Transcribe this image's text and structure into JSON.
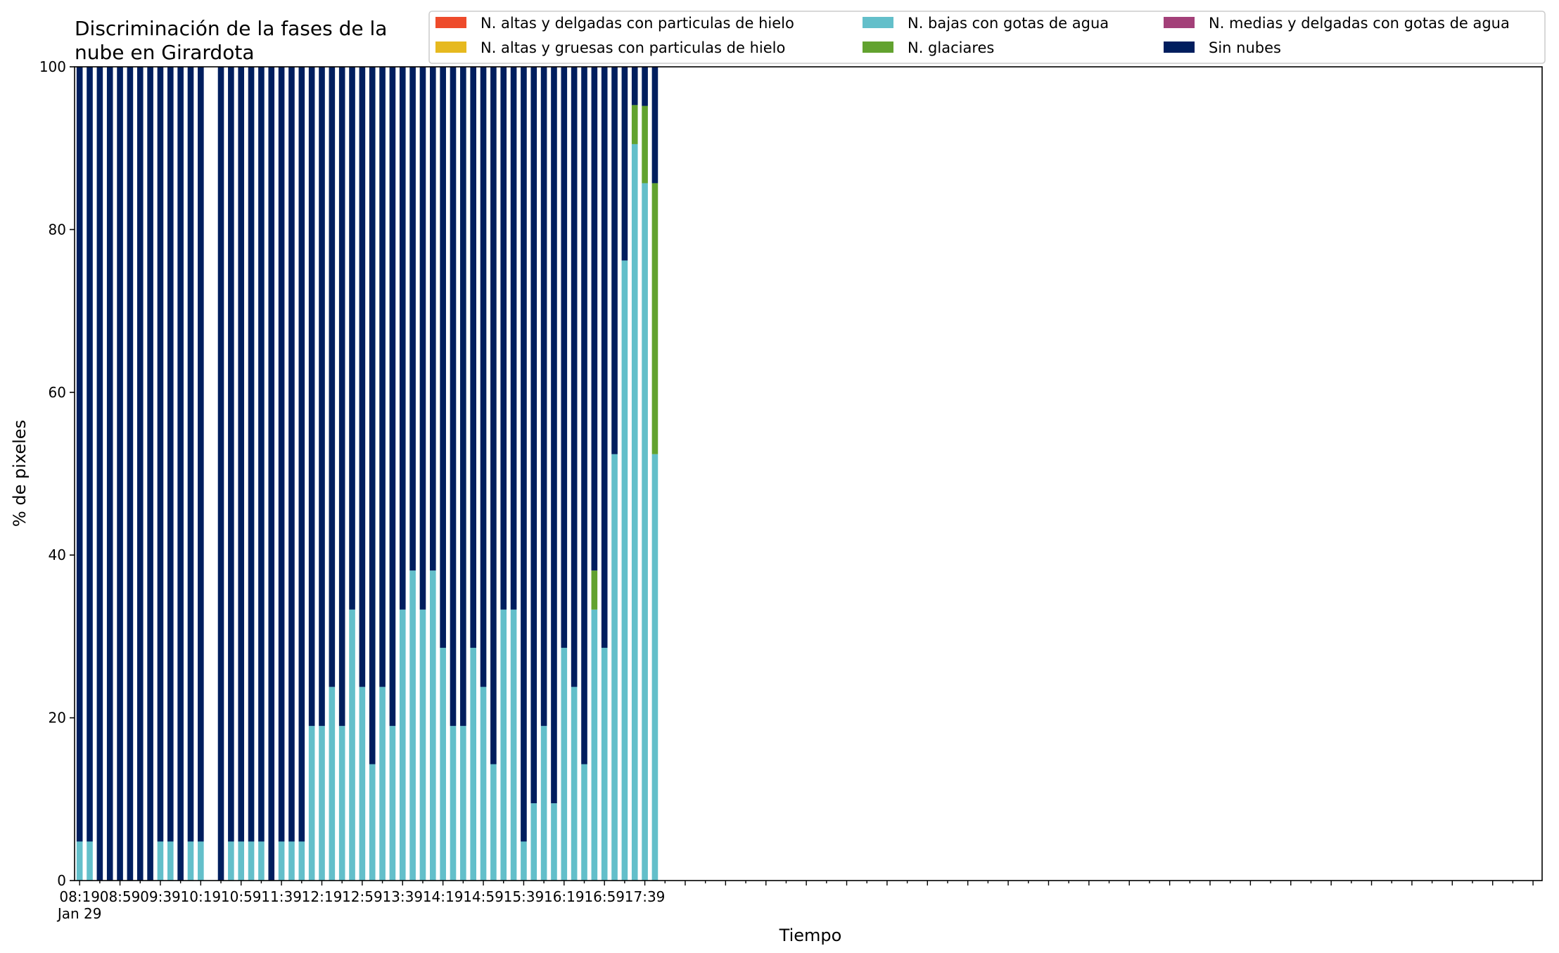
{
  "chart_data": {
    "type": "bar",
    "stacked": true,
    "title_lines": [
      "Discriminación de la fases de la",
      "nube en Girardota"
    ],
    "xlabel": "Tiempo",
    "ylabel": "% de pixeles",
    "ylim": [
      0,
      100
    ],
    "y_ticks": [
      "0",
      "20",
      "40",
      "60",
      "80",
      "100"
    ],
    "x_range_minutes": [
      -5,
      1449
    ],
    "x_tick_labels": [
      {
        "minute": 0,
        "label": "08:19",
        "sublabel": "Jan 29"
      },
      {
        "minute": 40,
        "label": "08:59"
      },
      {
        "minute": 80,
        "label": "09:39"
      },
      {
        "minute": 120,
        "label": "10:19"
      },
      {
        "minute": 160,
        "label": "10:59"
      },
      {
        "minute": 200,
        "label": "11:39"
      },
      {
        "minute": 240,
        "label": "12:19"
      },
      {
        "minute": 280,
        "label": "12:59"
      },
      {
        "minute": 320,
        "label": "13:39"
      },
      {
        "minute": 360,
        "label": "14:19"
      },
      {
        "minute": 400,
        "label": "14:59"
      },
      {
        "minute": 440,
        "label": "15:39"
      },
      {
        "minute": 480,
        "label": "16:19"
      },
      {
        "minute": 520,
        "label": "16:59"
      },
      {
        "minute": 560,
        "label": "17:39"
      }
    ],
    "legend_placement": "top-right",
    "legend_columns": 3,
    "grid": false,
    "series": [
      {
        "name": "N. altas y delgadas con particulas de hielo",
        "color": "#ee4b2b"
      },
      {
        "name": "N. altas y gruesas con particulas de hielo",
        "color": "#e6b91f"
      },
      {
        "name": "N. bajas con gotas de agua",
        "color": "#63bfca"
      },
      {
        "name": "N. glaciares",
        "color": "#62a22f"
      },
      {
        "name": "N. medias y delgadas con gotas de agua",
        "color": "#a34079"
      },
      {
        "name": "Sin nubes",
        "color": "#001e5e"
      }
    ],
    "bars": [
      {
        "time": "08:19",
        "values": [
          0,
          0,
          4.8,
          0,
          0,
          95.2
        ]
      },
      {
        "time": "08:29",
        "values": [
          0,
          0,
          4.8,
          0,
          0,
          95.2
        ]
      },
      {
        "time": "08:39",
        "values": [
          0,
          0,
          0,
          0,
          0,
          100
        ]
      },
      {
        "time": "08:49",
        "values": [
          0,
          0,
          0,
          0,
          0,
          100
        ]
      },
      {
        "time": "08:59",
        "values": [
          0,
          0,
          0,
          0,
          0,
          100
        ]
      },
      {
        "time": "09:09",
        "values": [
          0,
          0,
          0,
          0,
          0,
          100
        ]
      },
      {
        "time": "09:19",
        "values": [
          0,
          0,
          0,
          0,
          0,
          100
        ]
      },
      {
        "time": "09:29",
        "values": [
          0,
          0,
          0,
          0,
          0,
          100
        ]
      },
      {
        "time": "09:39",
        "values": [
          0,
          0,
          4.8,
          0,
          0,
          95.2
        ]
      },
      {
        "time": "09:49",
        "values": [
          0,
          0,
          4.8,
          0,
          0,
          95.2
        ]
      },
      {
        "time": "09:59",
        "values": [
          0,
          0,
          0,
          0,
          0,
          100
        ]
      },
      {
        "time": "10:09",
        "values": [
          0,
          0,
          4.8,
          0,
          0,
          95.2
        ]
      },
      {
        "time": "10:19",
        "values": [
          0,
          0,
          4.8,
          0,
          0,
          95.2
        ]
      },
      {
        "time": "10:39",
        "values": [
          0,
          0,
          0,
          0,
          0,
          100
        ]
      },
      {
        "time": "10:49",
        "values": [
          0,
          0,
          4.8,
          0,
          0,
          95.2
        ]
      },
      {
        "time": "10:59",
        "values": [
          0,
          0,
          4.8,
          0,
          0,
          95.2
        ]
      },
      {
        "time": "11:09",
        "values": [
          0,
          0,
          4.8,
          0,
          0,
          95.2
        ]
      },
      {
        "time": "11:19",
        "values": [
          0,
          0,
          4.8,
          0,
          0,
          95.2
        ]
      },
      {
        "time": "11:29",
        "values": [
          0,
          0,
          0,
          0,
          0,
          100
        ]
      },
      {
        "time": "11:39",
        "values": [
          0,
          0,
          4.8,
          0,
          0,
          95.2
        ]
      },
      {
        "time": "11:49",
        "values": [
          0,
          0,
          4.8,
          0,
          0,
          95.2
        ]
      },
      {
        "time": "11:59",
        "values": [
          0,
          0,
          4.8,
          0,
          0,
          95.2
        ]
      },
      {
        "time": "12:09",
        "values": [
          0,
          0,
          19,
          0,
          0,
          81
        ]
      },
      {
        "time": "12:19",
        "values": [
          0,
          0,
          19,
          0,
          0,
          81
        ]
      },
      {
        "time": "12:29",
        "values": [
          0,
          0,
          23.8,
          0,
          0,
          76.2
        ]
      },
      {
        "time": "12:39",
        "values": [
          0,
          0,
          19,
          0,
          0,
          81
        ]
      },
      {
        "time": "12:49",
        "values": [
          0,
          0,
          33.3,
          0,
          0,
          66.7
        ]
      },
      {
        "time": "12:59",
        "values": [
          0,
          0,
          23.8,
          0,
          0,
          76.2
        ]
      },
      {
        "time": "13:09",
        "values": [
          0,
          0,
          14.3,
          0,
          0,
          85.7
        ]
      },
      {
        "time": "13:19",
        "values": [
          0,
          0,
          23.8,
          0,
          0,
          76.2
        ]
      },
      {
        "time": "13:29",
        "values": [
          0,
          0,
          19,
          0,
          0,
          81
        ]
      },
      {
        "time": "13:39",
        "values": [
          0,
          0,
          33.3,
          0,
          0,
          66.7
        ]
      },
      {
        "time": "13:49",
        "values": [
          0,
          0,
          38.1,
          0,
          0,
          61.9
        ]
      },
      {
        "time": "13:59",
        "values": [
          0,
          0,
          33.3,
          0,
          0,
          66.7
        ]
      },
      {
        "time": "14:09",
        "values": [
          0,
          0,
          38.1,
          0,
          0,
          61.9
        ]
      },
      {
        "time": "14:19",
        "values": [
          0,
          0,
          28.6,
          0,
          0,
          71.4
        ]
      },
      {
        "time": "14:29",
        "values": [
          0,
          0,
          19,
          0,
          0,
          81
        ]
      },
      {
        "time": "14:39",
        "values": [
          0,
          0,
          19,
          0,
          0,
          81
        ]
      },
      {
        "time": "14:49",
        "values": [
          0,
          0,
          28.6,
          0,
          0,
          71.4
        ]
      },
      {
        "time": "14:59",
        "values": [
          0,
          0,
          23.8,
          0,
          0,
          76.2
        ]
      },
      {
        "time": "15:09",
        "values": [
          0,
          0,
          14.3,
          0,
          0,
          85.7
        ]
      },
      {
        "time": "15:19",
        "values": [
          0,
          0,
          33.3,
          0,
          0,
          66.7
        ]
      },
      {
        "time": "15:29",
        "values": [
          0,
          0,
          33.3,
          0,
          0,
          66.7
        ]
      },
      {
        "time": "15:39",
        "values": [
          0,
          0,
          4.8,
          0,
          0,
          95.2
        ]
      },
      {
        "time": "15:49",
        "values": [
          0,
          0,
          9.5,
          0,
          0,
          90.5
        ]
      },
      {
        "time": "15:59",
        "values": [
          0,
          0,
          19,
          0,
          0,
          81
        ]
      },
      {
        "time": "16:09",
        "values": [
          0,
          0,
          9.5,
          0,
          0,
          90.5
        ]
      },
      {
        "time": "16:19",
        "values": [
          0,
          0,
          28.6,
          0,
          0,
          71.4
        ]
      },
      {
        "time": "16:29",
        "values": [
          0,
          0,
          23.8,
          0,
          0,
          76.2
        ]
      },
      {
        "time": "16:39",
        "values": [
          0,
          0,
          14.3,
          0,
          0,
          85.7
        ]
      },
      {
        "time": "16:49",
        "values": [
          0,
          0,
          33.3,
          4.8,
          0,
          61.9
        ]
      },
      {
        "time": "16:59",
        "values": [
          0,
          0,
          28.6,
          0,
          0,
          71.4
        ]
      },
      {
        "time": "17:09",
        "values": [
          0,
          0,
          52.4,
          0,
          0,
          47.6
        ]
      },
      {
        "time": "17:19",
        "values": [
          0,
          0,
          76.2,
          0,
          0,
          23.8
        ]
      },
      {
        "time": "17:29",
        "values": [
          0,
          0,
          90.5,
          4.8,
          0,
          4.7
        ]
      },
      {
        "time": "17:39",
        "values": [
          0,
          0,
          85.7,
          9.5,
          0,
          4.8
        ]
      },
      {
        "time": "17:49",
        "values": [
          0,
          0,
          52.4,
          33.3,
          0,
          14.3
        ]
      }
    ]
  }
}
